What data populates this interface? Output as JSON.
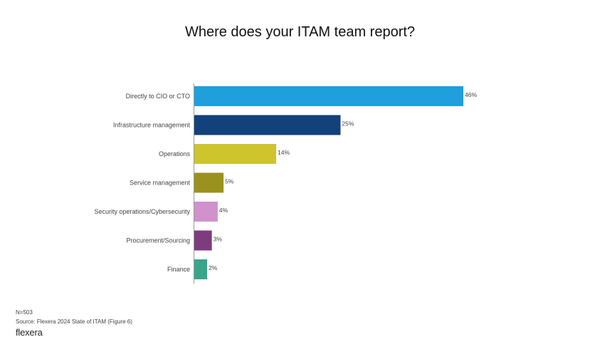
{
  "chart_data": {
    "type": "bar",
    "orientation": "horizontal",
    "title": "Where does your ITAM team report?",
    "categories": [
      "Directly to CIO or CTO",
      "Infrastructure management",
      "Operations",
      "Service management",
      "Security operations/Cybersecurity",
      "Procurement/Sourcing",
      "Finance"
    ],
    "values": [
      46,
      25,
      14,
      5,
      4,
      3,
      2
    ],
    "value_labels": [
      "46%",
      "25%",
      "14%",
      "5%",
      "4%",
      "3%",
      "2%"
    ],
    "colors": [
      "#1f9fdc",
      "#12417c",
      "#cdc52b",
      "#9a921f",
      "#d191cc",
      "#7e3c7d",
      "#3aa58a"
    ],
    "xlabel": "",
    "ylabel": "",
    "xlim": [
      0,
      46
    ],
    "grid": false,
    "legend": "none"
  },
  "footer": {
    "sample": "N=503",
    "source": "Source: Flexera 2024 State of ITAM (Figure 6)",
    "logo": "flexera"
  }
}
